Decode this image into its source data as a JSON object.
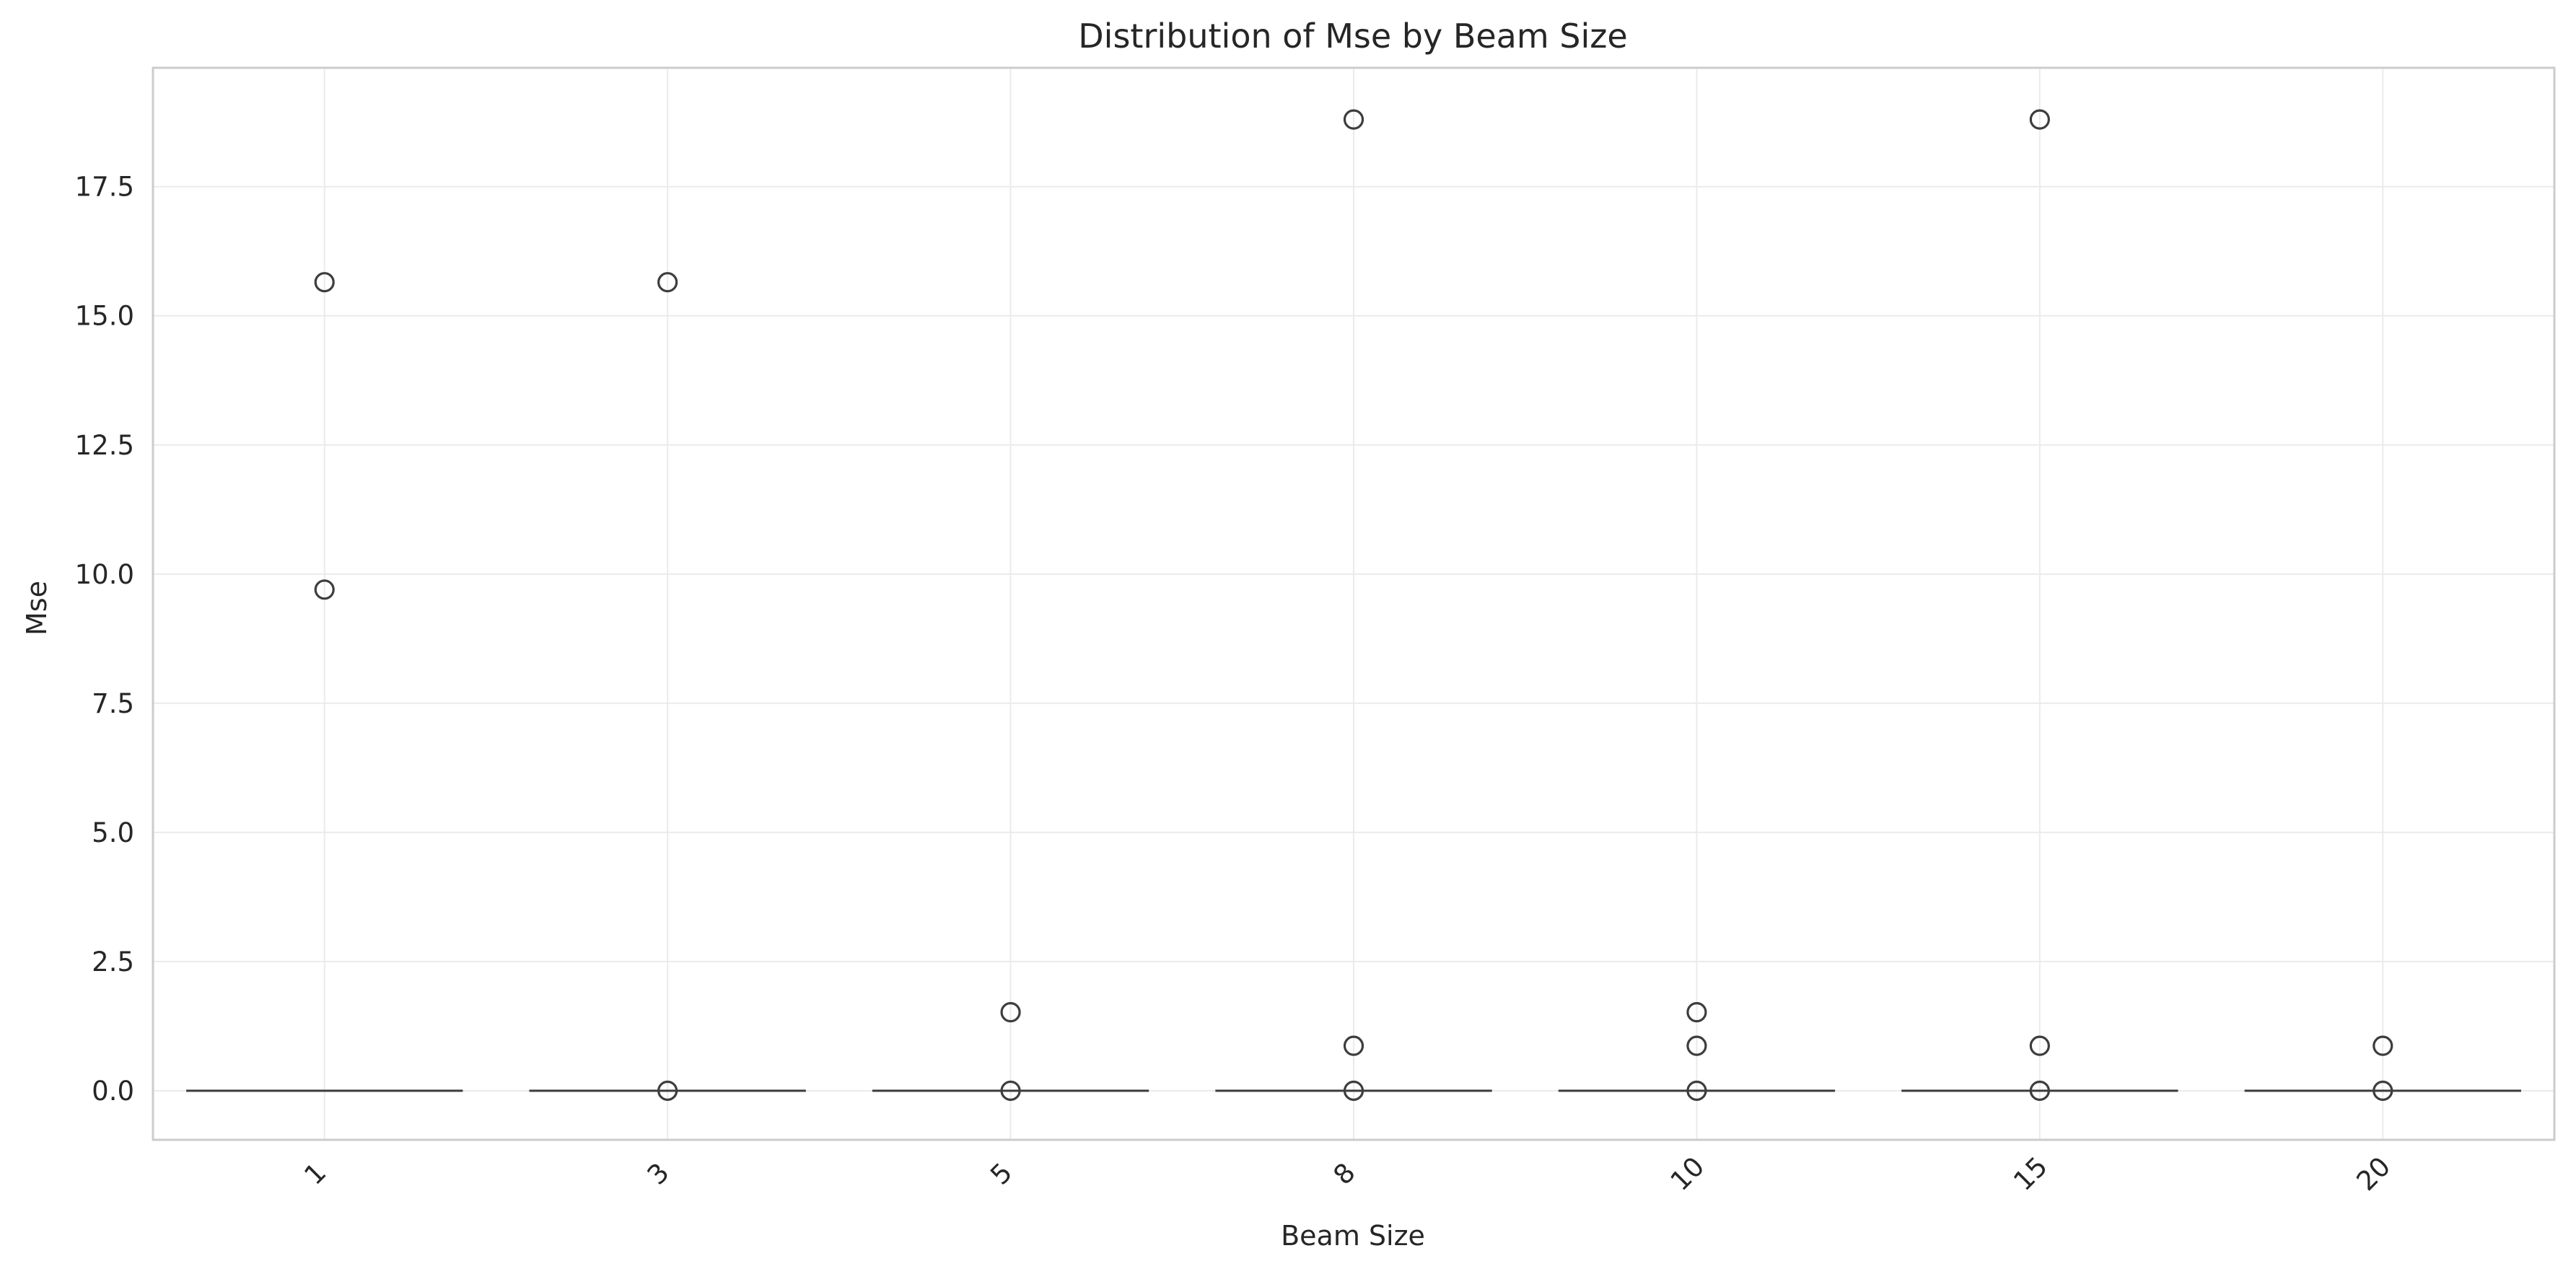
{
  "chart_data": {
    "type": "box",
    "title": "Distribution of Mse by Beam Size",
    "xlabel": "Beam Size",
    "ylabel": "Mse",
    "categories": [
      "1",
      "3",
      "5",
      "8",
      "10",
      "15",
      "20"
    ],
    "ylim": [
      -0.95,
      19.8
    ],
    "yticks": [
      0.0,
      2.5,
      5.0,
      7.5,
      10.0,
      12.5,
      15.0,
      17.5
    ],
    "ytick_labels": [
      "0.0",
      "2.5",
      "5.0",
      "7.5",
      "10.0",
      "12.5",
      "15.0",
      "17.5"
    ],
    "grid": true,
    "x_tick_rotation": 45,
    "boxes": [
      {
        "category": "1",
        "q1": 0.0,
        "median": 0.0,
        "q3": 0.0,
        "whisker_low": 0.0,
        "whisker_high": 0.0,
        "outliers": [
          15.65,
          9.7
        ]
      },
      {
        "category": "3",
        "q1": 0.0,
        "median": 0.0,
        "q3": 0.0,
        "whisker_low": 0.0,
        "whisker_high": 0.0,
        "outliers": [
          15.65,
          0.0
        ]
      },
      {
        "category": "5",
        "q1": 0.0,
        "median": 0.0,
        "q3": 0.0,
        "whisker_low": 0.0,
        "whisker_high": 0.0,
        "outliers": [
          1.52,
          0.0
        ]
      },
      {
        "category": "8",
        "q1": 0.0,
        "median": 0.0,
        "q3": 0.0,
        "whisker_low": 0.0,
        "whisker_high": 0.0,
        "outliers": [
          18.8,
          0.87,
          0.0
        ]
      },
      {
        "category": "10",
        "q1": 0.0,
        "median": 0.0,
        "q3": 0.0,
        "whisker_low": 0.0,
        "whisker_high": 0.0,
        "outliers": [
          1.52,
          0.87,
          0.0
        ]
      },
      {
        "category": "15",
        "q1": 0.0,
        "median": 0.0,
        "q3": 0.0,
        "whisker_low": 0.0,
        "whisker_high": 0.0,
        "outliers": [
          18.8,
          0.87,
          0.0
        ]
      },
      {
        "category": "20",
        "q1": 0.0,
        "median": 0.0,
        "q3": 0.0,
        "whisker_low": 0.0,
        "whisker_high": 0.0,
        "outliers": [
          0.87,
          0.0
        ]
      }
    ]
  },
  "colors": {
    "background": "#ffffff",
    "grid": "#ebebeb",
    "frame": "#cccccc",
    "marks": "#3d3d3d",
    "text": "#262626"
  }
}
